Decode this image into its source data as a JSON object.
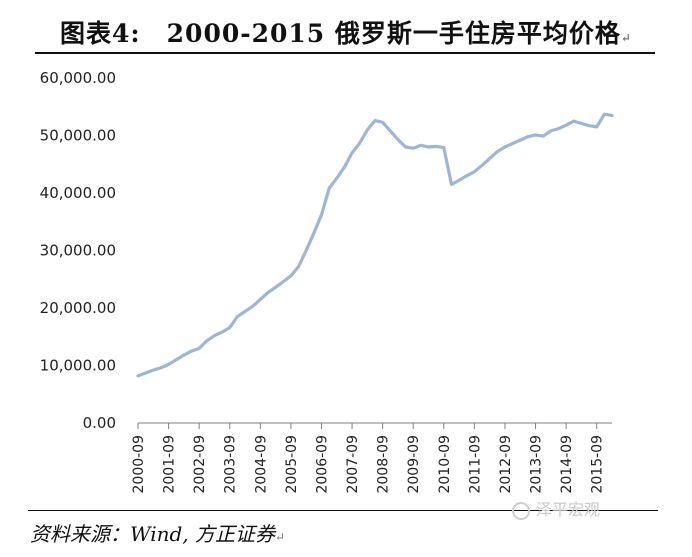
{
  "title": "图表4:　2000-2015 俄罗斯一手住房平均价格",
  "para_mark": "↵",
  "source": "资料来源：Wind, 方正证券",
  "watermark": "泽平宏观",
  "colors": {
    "line": "#9db5d6",
    "axis": "#7f7f7f"
  },
  "chart_data": {
    "type": "line",
    "title": "2000-2015 俄罗斯一手住房平均价格",
    "xlabel": "",
    "ylabel": "",
    "ylim": [
      0,
      60000
    ],
    "yticks": [
      "0.00",
      "10,000.00",
      "20,000.00",
      "30,000.00",
      "40,000.00",
      "50,000.00",
      "60,000.00"
    ],
    "xticks": [
      "2000-09",
      "2001-09",
      "2002-09",
      "2003-09",
      "2004-09",
      "2005-09",
      "2006-09",
      "2007-09",
      "2008-09",
      "2009-09",
      "2010-09",
      "2011-09",
      "2012-09",
      "2013-09",
      "2014-09",
      "2015-09"
    ],
    "grid": false,
    "legend": "none",
    "series": [
      {
        "x": [
          "2000-09",
          "2000-12",
          "2001-03",
          "2001-06",
          "2001-09",
          "2001-12",
          "2002-03",
          "2002-06",
          "2002-09",
          "2002-12",
          "2003-03",
          "2003-06",
          "2003-09",
          "2003-12",
          "2004-03",
          "2004-06",
          "2004-09",
          "2004-12",
          "2005-03",
          "2005-06",
          "2005-09",
          "2005-12",
          "2006-03",
          "2006-06",
          "2006-09",
          "2006-12",
          "2007-03",
          "2007-06",
          "2007-09",
          "2007-12",
          "2008-03",
          "2008-06",
          "2008-09",
          "2008-12",
          "2009-03",
          "2009-06",
          "2009-09",
          "2009-12",
          "2010-03",
          "2010-06",
          "2010-09",
          "2010-12",
          "2011-03",
          "2011-06",
          "2011-09",
          "2011-12",
          "2012-03",
          "2012-06",
          "2012-09",
          "2012-12",
          "2013-03",
          "2013-06",
          "2013-09",
          "2013-12",
          "2014-03",
          "2014-06",
          "2014-09",
          "2014-12",
          "2015-03",
          "2015-06",
          "2015-09",
          "2015-12",
          "2016-03"
        ],
        "values": [
          8200,
          8700,
          9200,
          9600,
          10200,
          11000,
          11800,
          12500,
          13000,
          14300,
          15200,
          15800,
          16600,
          18500,
          19400,
          20300,
          21500,
          22700,
          23600,
          24600,
          25600,
          27200,
          30000,
          33000,
          36200,
          40800,
          42600,
          44500,
          47000,
          48700,
          51000,
          52600,
          52300,
          50800,
          49300,
          48000,
          47800,
          48300,
          48000,
          48100,
          47900,
          41500,
          42200,
          43000,
          43700,
          44800,
          46000,
          47200,
          48000,
          48600,
          49200,
          49800,
          50100,
          49900,
          50800,
          51200,
          51800,
          52500,
          52100,
          51700,
          51500,
          53700,
          53500
        ]
      }
    ]
  }
}
